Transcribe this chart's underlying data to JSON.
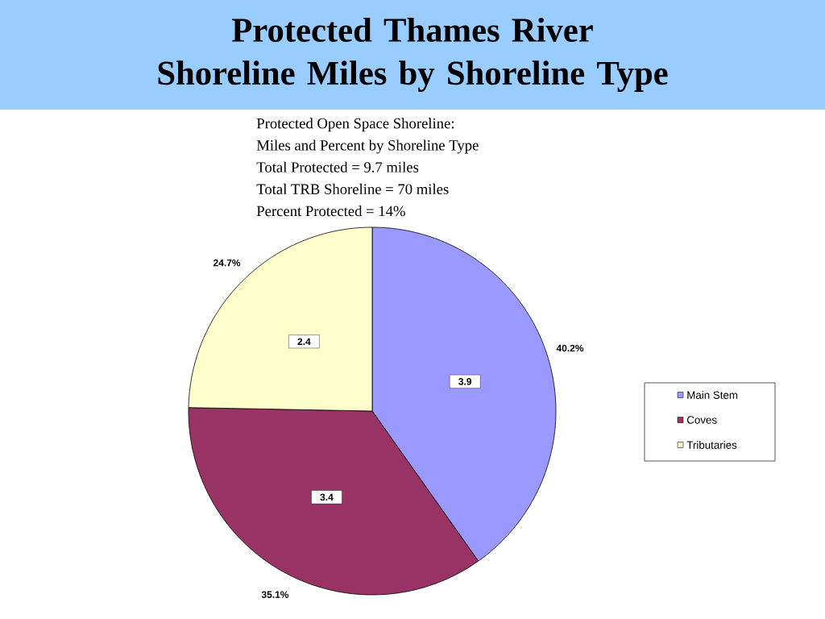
{
  "chart_data": {
    "type": "pie",
    "title": "Protected Thames River Shoreline Miles by Shoreline Type",
    "annotations": [
      "Protected Open Space Shoreline:",
      "Miles and Percent by Shoreline Type",
      "Total Protected = 9.7 miles",
      "Total TRB Shoreline = 70 miles",
      "Percent Protected = 14%",
      {
        "text": "3.9",
        "x": "Main Stem"
      },
      {
        "text": "3.4",
        "x": "Coves"
      },
      {
        "text": "2.4",
        "x": "Tributaries"
      }
    ],
    "categories": [
      "Main Stem",
      "Coves",
      "Tributaries"
    ],
    "values": [
      40.2,
      35.1,
      24.7
    ],
    "colors": [
      "#9999ff",
      "#993366",
      "#ffffcc"
    ],
    "value_labels": [
      "40.2%",
      "35.1%",
      "24.7%"
    ],
    "legend": "right"
  }
}
